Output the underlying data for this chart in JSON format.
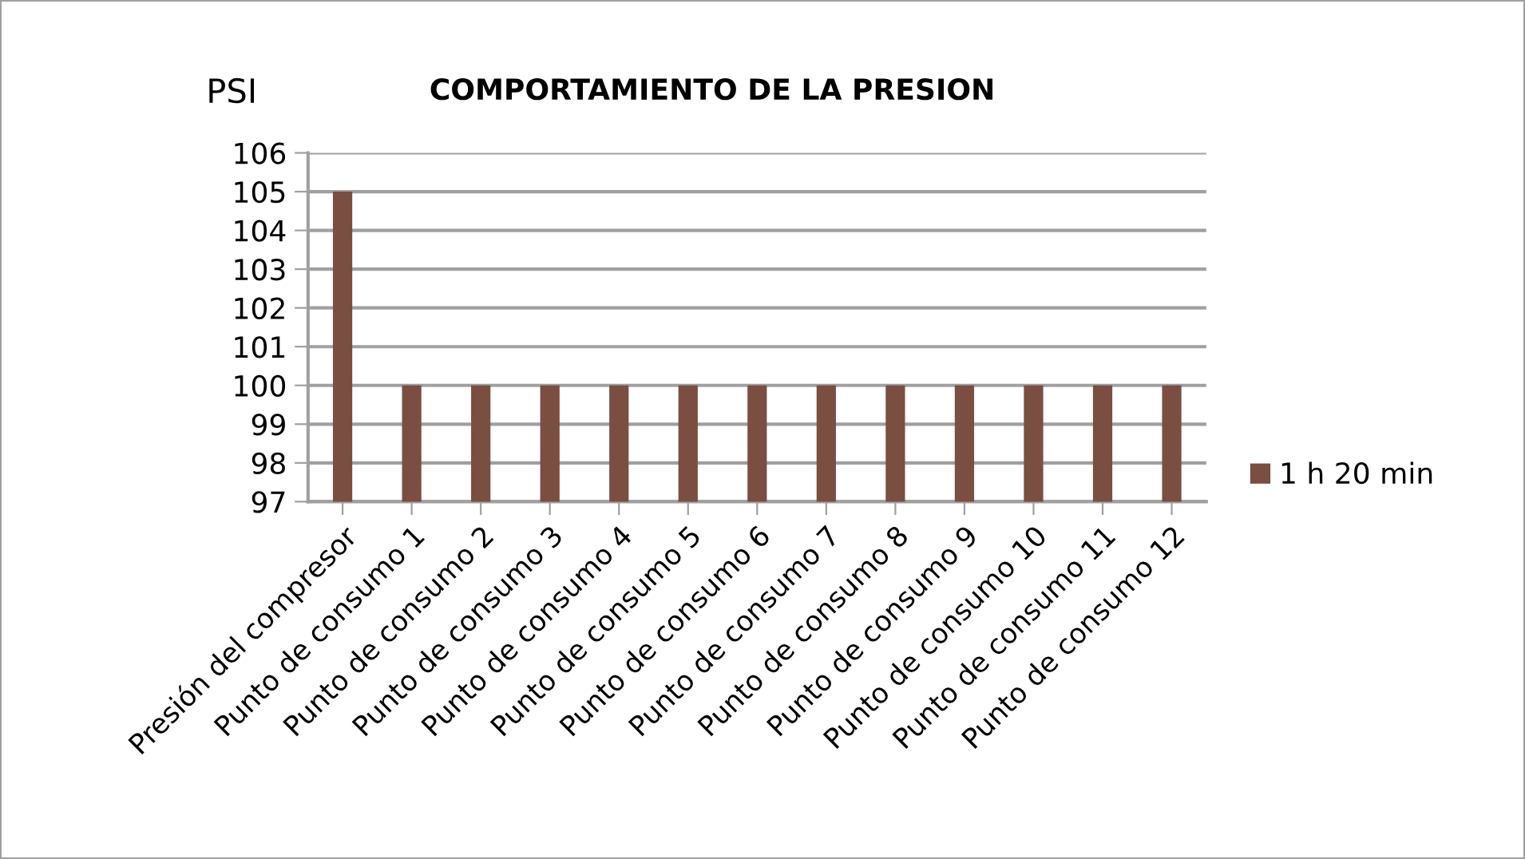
{
  "chart_data": {
    "type": "bar",
    "title": "COMPORTAMIENTO DE LA PRESION",
    "ylabel": "PSI",
    "categories": [
      "Presión del compresor",
      "Punto de consumo 1",
      "Punto de consumo 2",
      "Punto de consumo 3",
      "Punto de consumo 4",
      "Punto de consumo 5",
      "Punto de consumo 6",
      "Punto de consumo 7",
      "Punto de consumo 8",
      "Punto de consumo 9",
      "Punto de consumo 10",
      "Punto de consumo 11",
      "Punto de consumo 12"
    ],
    "series": [
      {
        "name": "1 h 20 min",
        "color": "#7a4e41",
        "values": [
          105,
          100,
          100,
          100,
          100,
          100,
          100,
          100,
          100,
          100,
          100,
          100,
          100
        ]
      }
    ],
    "ylim": [
      97,
      106
    ],
    "yticks": [
      97,
      98,
      99,
      100,
      101,
      102,
      103,
      104,
      105,
      106
    ],
    "grid": "y",
    "legend": "bottom right"
  }
}
